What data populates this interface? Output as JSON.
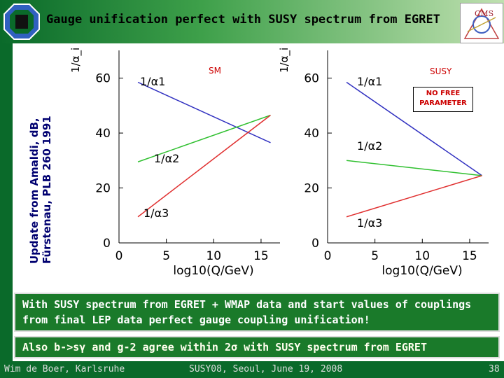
{
  "slide": {
    "title": "Gauge unification perfect with SUSY spectrum from EGRET",
    "side_note_line1": "Update from Amaldi, dB,",
    "side_note_line2": "Fürstenau, PLB 260 1991",
    "panel_sm_label": "SM",
    "panel_susy_label": "SUSY",
    "no_free_parameter": "NO FREE PARAMETER",
    "box1_text": "With SUSY spectrum from EGRET + WMAP data and start values of couplings from final LEP data perfect gauge coupling unification!",
    "box2_text": "Also b->sγ and g-2 agree within 2σ with SUSY spectrum from EGRET",
    "footer_author": "Wim de Boer, Karlsruhe",
    "footer_event": "SUSY08, Seoul, June 19, 2008",
    "footer_page": "38"
  },
  "chart_data": [
    {
      "type": "line",
      "panel": "SM",
      "ylabel": "1/α_i",
      "xlabel": "log10(Q/GeV)",
      "xlim": [
        0,
        17
      ],
      "ylim": [
        0,
        65
      ],
      "xticks": [
        0,
        5,
        10,
        15
      ],
      "yticks": [
        0,
        20,
        40,
        60
      ],
      "series": [
        {
          "name": "1/α1",
          "color": "#3030c0",
          "x": [
            2,
            16
          ],
          "y": [
            58.5,
            36.5
          ]
        },
        {
          "name": "1/α2",
          "color": "#30c030",
          "x": [
            2,
            16
          ],
          "y": [
            29.5,
            46.5
          ]
        },
        {
          "name": "1/α3",
          "color": "#e03030",
          "x": [
            2,
            16
          ],
          "y": [
            9.5,
            46.5
          ]
        }
      ]
    },
    {
      "type": "line",
      "panel": "SUSY",
      "ylabel": "1/α_i",
      "xlabel": "log10(Q/GeV)",
      "xlim": [
        0,
        17
      ],
      "ylim": [
        0,
        65
      ],
      "xticks": [
        0,
        5,
        10,
        15
      ],
      "yticks": [
        0,
        20,
        40,
        60
      ],
      "series": [
        {
          "name": "1/α1",
          "color": "#3030c0",
          "x": [
            2,
            16.3
          ],
          "y": [
            58.5,
            24.5
          ]
        },
        {
          "name": "1/α2",
          "color": "#30c030",
          "x": [
            2,
            16.3
          ],
          "y": [
            30.0,
            24.5
          ]
        },
        {
          "name": "1/α3",
          "color": "#e03030",
          "x": [
            2,
            16.3
          ],
          "y": [
            9.5,
            24.5
          ]
        }
      ]
    }
  ]
}
